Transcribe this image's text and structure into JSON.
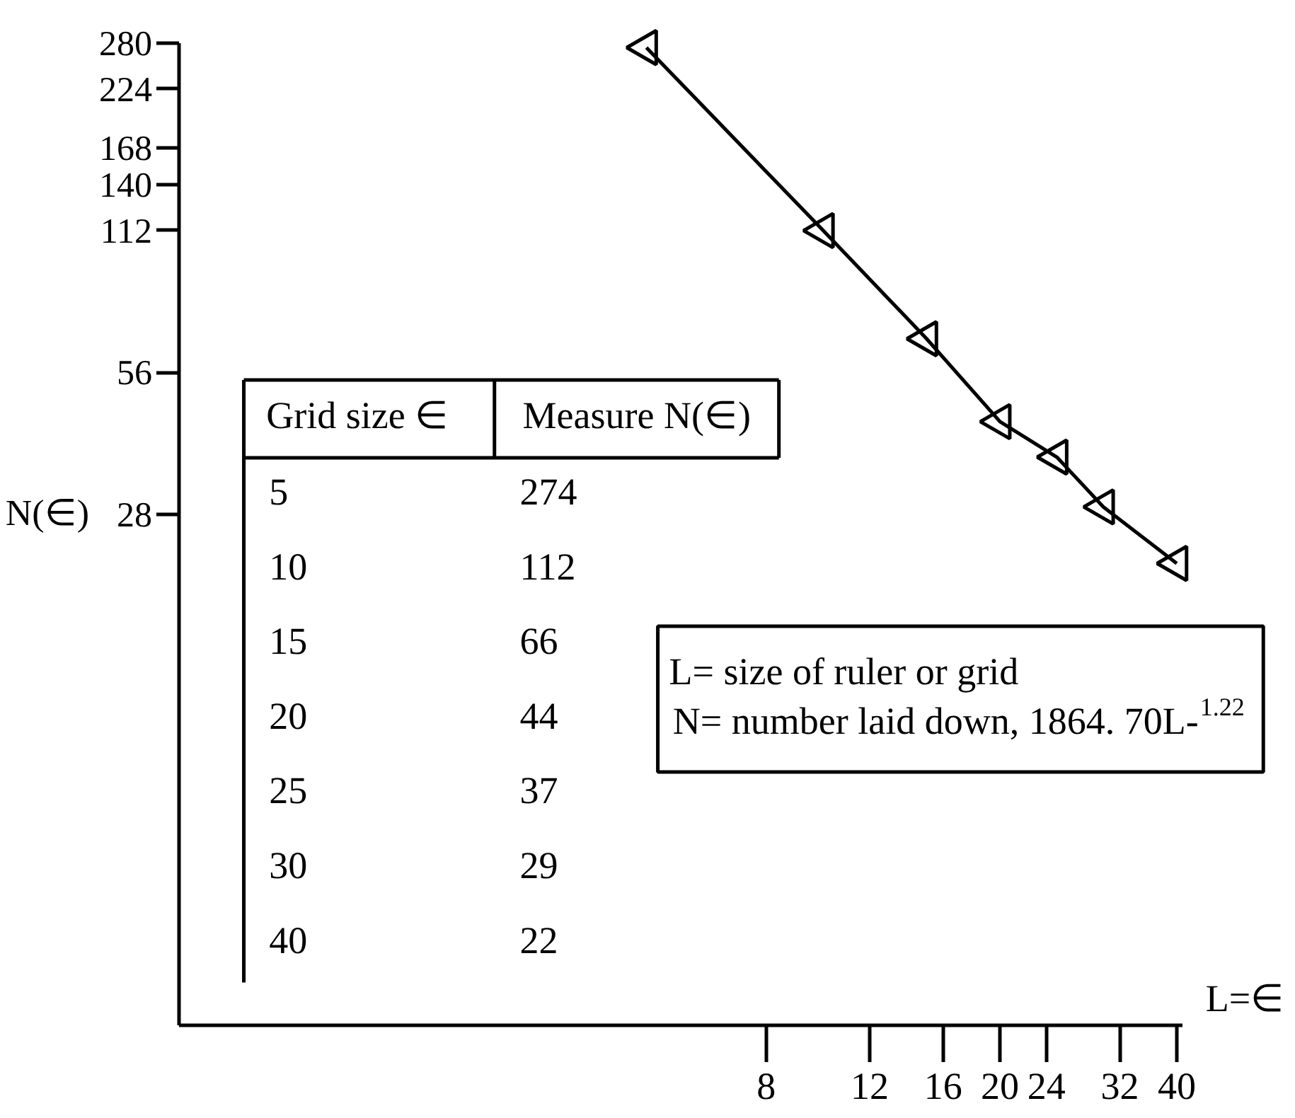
{
  "chart_data": {
    "type": "line",
    "xlabel": "L=∈",
    "ylabel": "N(∈)",
    "x": [
      5,
      10,
      15,
      20,
      25,
      30,
      40
    ],
    "series": [
      {
        "color": "#000000",
        "values": [
          274,
          112,
          66,
          44,
          37,
          29,
          22
        ]
      }
    ],
    "log": "xy",
    "xlim": [
      0.8,
      41
    ],
    "ylim": [
      2.3,
      280
    ],
    "xticks": [
      8,
      12,
      16,
      20,
      24,
      32,
      40
    ],
    "yticks": [
      28,
      56,
      112,
      140,
      168,
      224,
      280
    ],
    "grid": false,
    "marker": "triangle",
    "line_style": "solid",
    "annotations": [
      "Grid size ∈",
      "Measure N(∈)",
      "5",
      "274",
      "10",
      "112",
      "15",
      "66",
      "20",
      "44",
      "25",
      "37",
      "30",
      "29",
      "40",
      "22",
      "L= size of ruler or grid",
      "N= number laid down, 1864. 70L-$^{1.22}$"
    ]
  }
}
